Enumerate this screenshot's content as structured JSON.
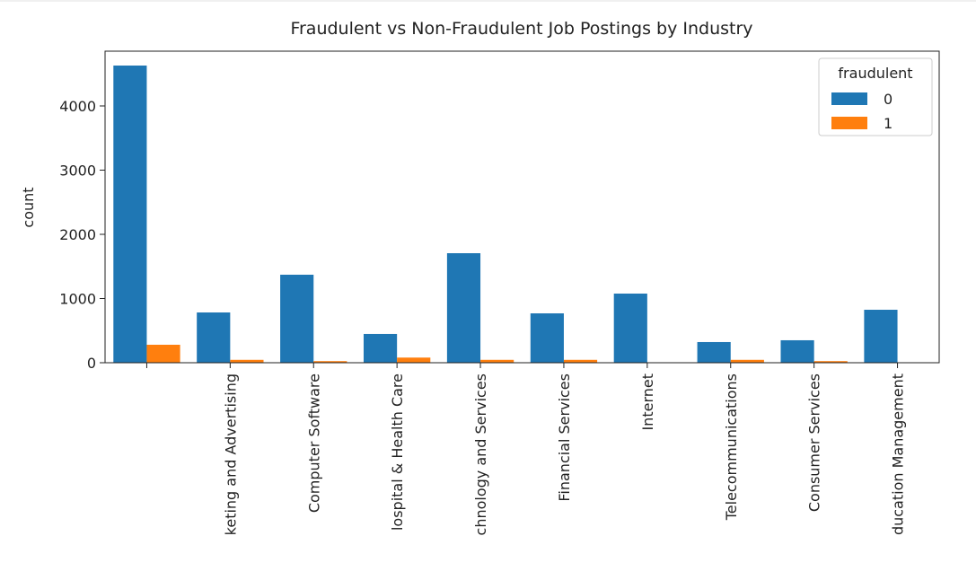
{
  "chart_data": {
    "type": "bar",
    "title": "Fraudulent vs Non-Fraudulent Job Postings by Industry",
    "y_label": "count",
    "legend_title": "fraudulent",
    "legend_position": "upper right",
    "categories": [
      null,
      "keting and Advertising",
      "Computer Software",
      "lospital & Health Care",
      "chnology and Services",
      "Financial Services",
      "Internet",
      "Telecommunications",
      "Consumer Services",
      "ducation Management"
    ],
    "series": [
      {
        "name": "0",
        "color": "#1f77b4",
        "values": [
          4629,
          783,
          1371,
          448,
          1706,
          769,
          1077,
          322,
          350,
          825
        ]
      },
      {
        "name": "1",
        "color": "#ff7f0e",
        "values": [
          280,
          45,
          25,
          80,
          45,
          45,
          2,
          45,
          25,
          1
        ]
      }
    ],
    "ylim": [
      0,
      4853
    ],
    "yticks": [
      0,
      1000,
      2000,
      3000,
      4000
    ]
  }
}
